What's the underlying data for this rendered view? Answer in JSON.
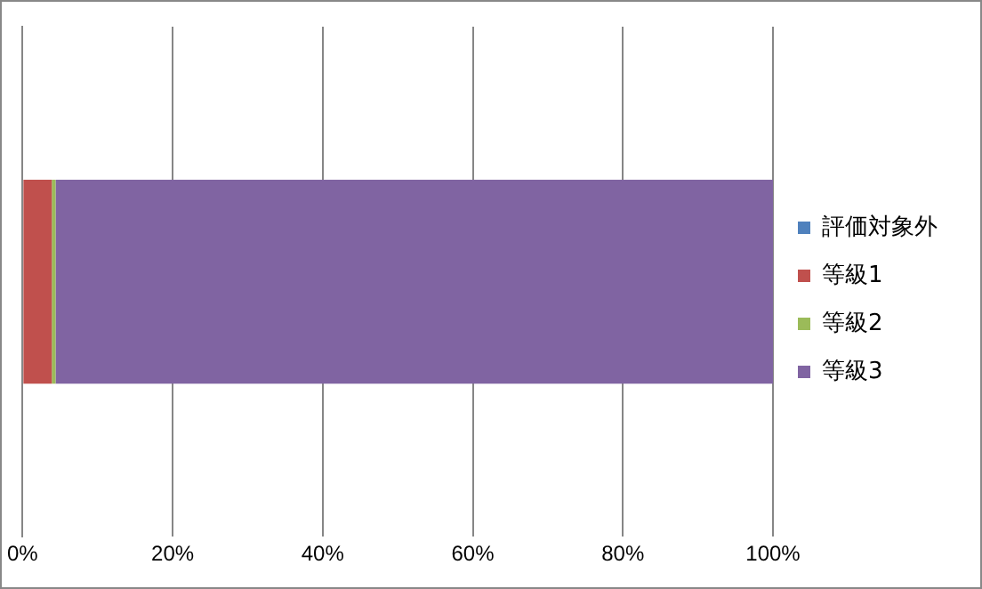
{
  "chart_data": {
    "type": "bar",
    "orientation": "horizontal",
    "stacked": true,
    "categories": [
      null
    ],
    "series": [
      {
        "name": "評価対象外",
        "color": "#4f81bd",
        "values": [
          0
        ]
      },
      {
        "name": "等級1",
        "color": "#c0504d",
        "values": [
          3.9
        ]
      },
      {
        "name": "等級2",
        "color": "#9bbb59",
        "values": [
          0.5
        ]
      },
      {
        "name": "等級3",
        "color": "#8064a2",
        "values": [
          95.6
        ]
      }
    ],
    "xlim": [
      0,
      100
    ],
    "xticks": [
      {
        "value": 0,
        "label": "0%"
      },
      {
        "value": 20,
        "label": "20%"
      },
      {
        "value": 40,
        "label": "40%"
      },
      {
        "value": 60,
        "label": "60%"
      },
      {
        "value": 80,
        "label": "80%"
      },
      {
        "value": 100,
        "label": "100%"
      }
    ],
    "grid": "x",
    "legend": "right"
  }
}
